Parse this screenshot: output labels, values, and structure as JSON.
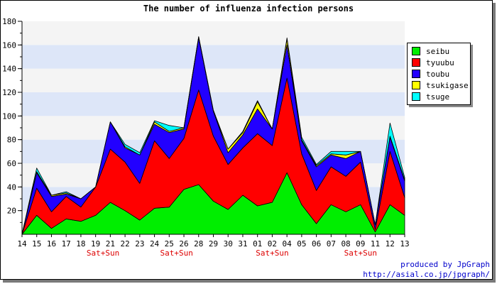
{
  "chart_data": {
    "type": "area",
    "stacked": true,
    "title": "The number of influenza infection persons",
    "categories": [
      "14",
      "15",
      "16",
      "17",
      "18",
      "19",
      "21",
      "22",
      "23",
      "24",
      "25",
      "26",
      "28",
      "29",
      "30",
      "31",
      "01",
      "02",
      "04",
      "05",
      "06",
      "07",
      "08",
      "09",
      "11",
      "12",
      "13"
    ],
    "weekend_label": "Sat+Sun",
    "weekend_categories": [
      "20",
      "25",
      "01",
      "08"
    ],
    "ylim": [
      0,
      180
    ],
    "yticks": [
      20,
      40,
      60,
      80,
      100,
      120,
      140,
      160,
      180
    ],
    "grid": true,
    "legend_position": "right",
    "series": [
      {
        "name": "seibu",
        "color": "#00ee00",
        "values": [
          0,
          16,
          5,
          13,
          11,
          16,
          27,
          20,
          12,
          22,
          23,
          38,
          42,
          28,
          21,
          33,
          24,
          27,
          52,
          25,
          9,
          25,
          19,
          25,
          2,
          25,
          16
        ]
      },
      {
        "name": "tyuubu",
        "color": "#ff0000",
        "values": [
          0,
          23,
          14,
          19,
          12,
          24,
          45,
          41,
          31,
          57,
          41,
          43,
          80,
          55,
          38,
          40,
          61,
          48,
          80,
          43,
          28,
          32,
          30,
          36,
          2,
          45,
          15
        ]
      },
      {
        "name": "toubu",
        "color": "#2200ff",
        "values": [
          0,
          13,
          13,
          2,
          7,
          0,
          23,
          12,
          24,
          14,
          22,
          8,
          44,
          21,
          10,
          11,
          21,
          14,
          28,
          11,
          20,
          10,
          15,
          9,
          4,
          12,
          14
        ]
      },
      {
        "name": "tsukigase",
        "color": "#ffff00",
        "values": [
          0,
          1,
          1,
          1,
          0,
          0,
          0,
          1,
          0,
          2,
          1,
          1,
          1,
          0,
          3,
          2,
          6,
          0,
          5,
          1,
          1,
          1,
          3,
          0,
          0,
          1,
          1
        ]
      },
      {
        "name": "tsuge",
        "color": "#00ffff",
        "values": [
          0,
          3,
          0,
          1,
          0,
          0,
          0,
          2,
          2,
          1,
          5,
          0,
          0,
          1,
          0,
          1,
          1,
          0,
          1,
          2,
          1,
          2,
          3,
          0,
          0,
          11,
          2
        ]
      }
    ]
  },
  "footer": {
    "line1": "produced by JpGraph",
    "line2": "http://asial.co.jp/jpgraph/"
  }
}
